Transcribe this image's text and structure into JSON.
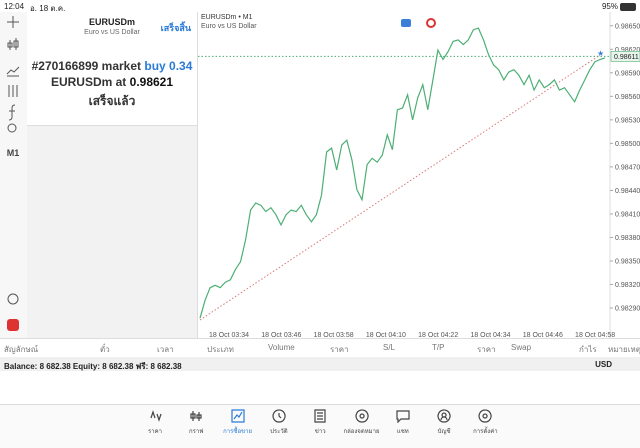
{
  "status": {
    "time": "12:04",
    "date": "อ. 18 ต.ค.",
    "battery": "95%"
  },
  "toolbar": {
    "timeframe": "M1"
  },
  "order": {
    "symbol": "EURUSDm",
    "description": "Euro vs US Dollar",
    "done_button": "เสร็จสิ้น",
    "line1": "#270166899 market",
    "side": "buy 0.34",
    "line2": "EURUSDm at",
    "price": "0.98621",
    "result": "เสร็จแล้ว"
  },
  "chart": {
    "type": "line",
    "title": "EURUSDm • M1",
    "subtitle": "Euro vs US Dollar",
    "color": "#4caf74",
    "ylim": [
      0.98262,
      0.98665
    ],
    "yticks": [
      {
        "value": 0.9865,
        "label": "0.98650"
      },
      {
        "value": 0.9862,
        "label": "0.98620"
      },
      {
        "value": 0.9859,
        "label": "0.98590"
      },
      {
        "value": 0.9856,
        "label": "0.98560"
      },
      {
        "value": 0.9853,
        "label": "0.98530"
      },
      {
        "value": 0.985,
        "label": "0.98500"
      },
      {
        "value": 0.9847,
        "label": "0.98470"
      },
      {
        "value": 0.9844,
        "label": "0.98440"
      },
      {
        "value": 0.9841,
        "label": "0.98410"
      },
      {
        "value": 0.9838,
        "label": "0.98380"
      },
      {
        "value": 0.9835,
        "label": "0.98350"
      },
      {
        "value": 0.9832,
        "label": "0.98320"
      },
      {
        "value": 0.9829,
        "label": "0.98290"
      }
    ],
    "last_price": 0.98611,
    "xlabels": [
      "18 Oct 03:34",
      "18 Oct 03:46",
      "18 Oct 03:58",
      "18 Oct 04:10",
      "18 Oct 04:22",
      "18 Oct 04:34",
      "18 Oct 04:46",
      "18 Oct 04:58"
    ],
    "values": [
      0.98277,
      0.983,
      0.98316,
      0.98319,
      0.98316,
      0.98323,
      0.98326,
      0.98339,
      0.98349,
      0.98377,
      0.98415,
      0.98424,
      0.98421,
      0.98413,
      0.98418,
      0.98409,
      0.98396,
      0.98409,
      0.98415,
      0.98413,
      0.98421,
      0.98409,
      0.984,
      0.98409,
      0.98434,
      0.98489,
      0.98494,
      0.98466,
      0.98498,
      0.98504,
      0.98479,
      0.98441,
      0.98428,
      0.98473,
      0.98481,
      0.98476,
      0.98485,
      0.98511,
      0.98492,
      0.98543,
      0.98545,
      0.98562,
      0.9853,
      0.98558,
      0.98575,
      0.98543,
      0.98581,
      0.98619,
      0.98607,
      0.98617,
      0.9863,
      0.98632,
      0.98626,
      0.98632,
      0.98645,
      0.98647,
      0.98632,
      0.98613,
      0.986,
      0.98594,
      0.98581,
      0.98591,
      0.98594,
      0.98587,
      0.98575,
      0.98587,
      0.98568,
      0.98581,
      0.98571,
      0.98575,
      0.98581,
      0.98568,
      0.98571,
      0.98562,
      0.98553,
      0.98568,
      0.98581,
      0.98594,
      0.98604,
      0.98607,
      0.98609
    ]
  },
  "table": {
    "headers": [
      "สัญลักษณ์",
      "ตั๋ว",
      "เวลา",
      "ประเภท",
      "Volume",
      "ราคา",
      "S/L",
      "T/P",
      "ราคา",
      "Swap",
      "กำไร",
      "หมายเหตุ"
    ],
    "balance": "Balance: 8 682.38 Equity: 8 682.38 ฟรี: 8 682.38",
    "currency": "USD"
  },
  "tabs": [
    "ราคา",
    "กราฟ",
    "การซื้อขาย",
    "ประวัติ",
    "ข่าว",
    "กล่องจดหมาย",
    "แชท",
    "บัญชี",
    "การตั้งค่า"
  ]
}
